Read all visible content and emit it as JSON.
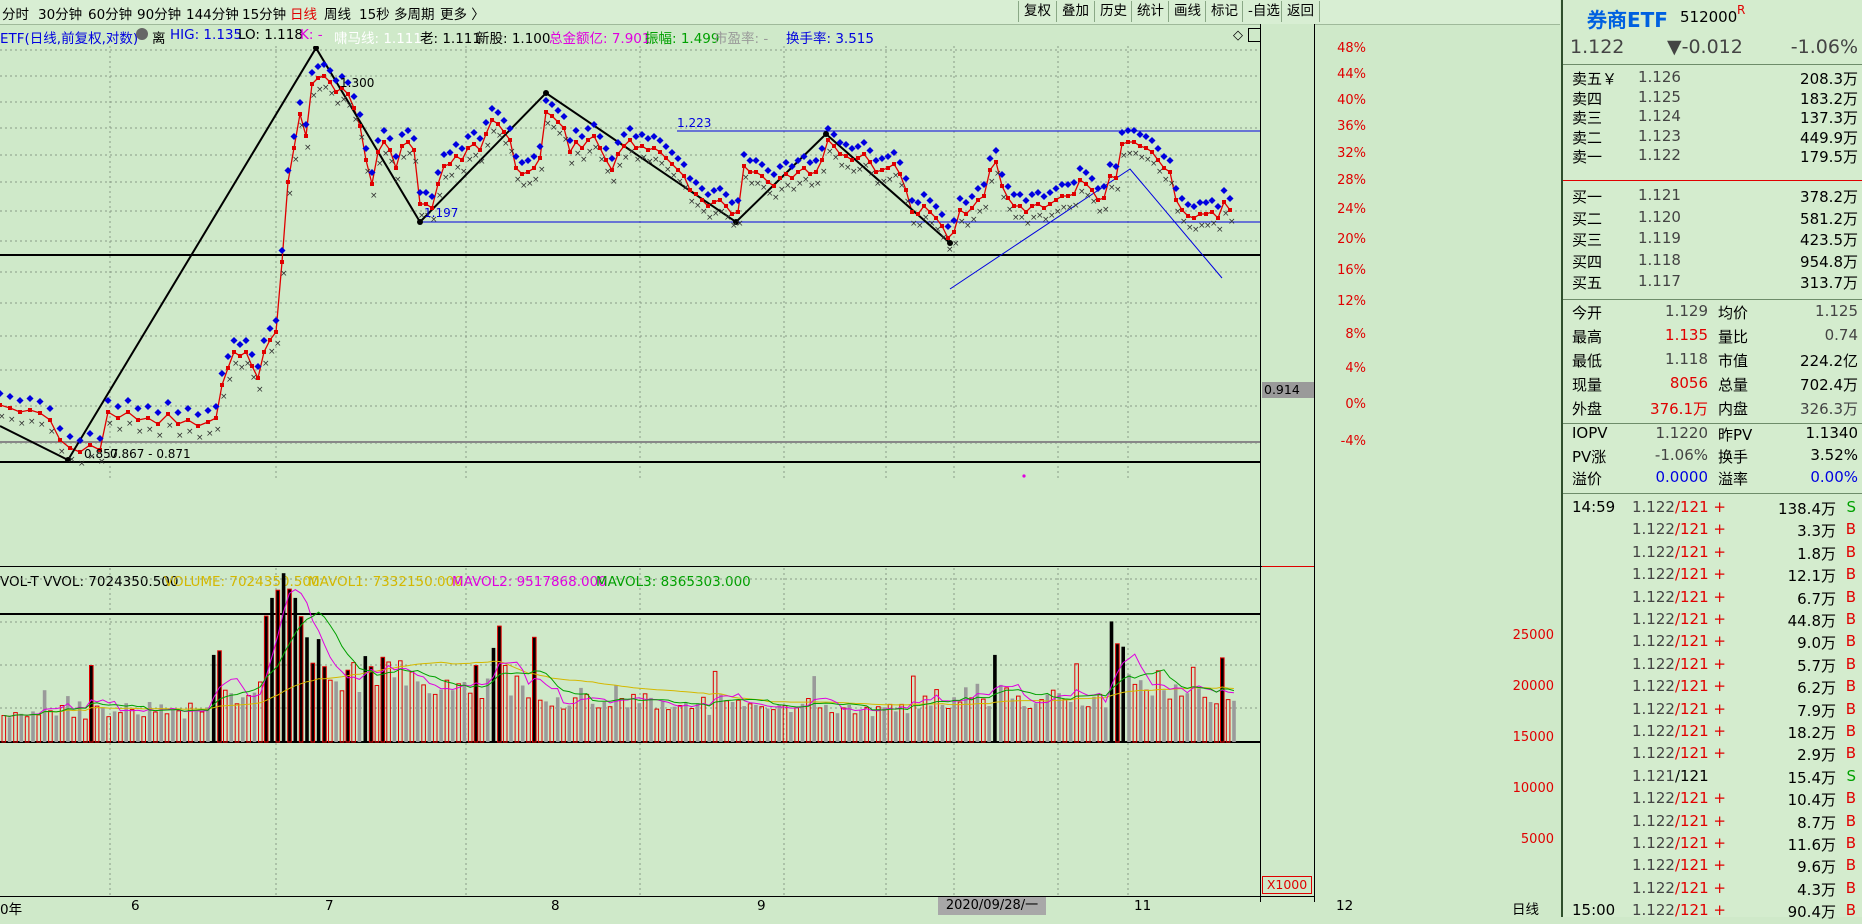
{
  "toolbar": {
    "timeframes": [
      "分时",
      "30分钟",
      "60分钟",
      "90分钟",
      "144分钟",
      "15分钟",
      "日线",
      "周线",
      "15秒",
      "多周期",
      "更多 〉"
    ],
    "active": "日线",
    "buttons": [
      "复权",
      "叠加",
      "历史",
      "统计",
      "画线",
      "标记",
      "-自选",
      "返回"
    ]
  },
  "info_line": {
    "name": "ETF(日线,前复权,对数)",
    "mode": "离",
    "hig": "HIG: 1.135",
    "lo": "LO: 1.118",
    "k": "K: -",
    "jd": "啸马线: 1.111",
    "old": "老: 1.111",
    "new_stock": "新股: 1.100",
    "amount": "总金额亿: 7.901",
    "amplitude": "振幅: 1.499",
    "pe": "市盈率: -",
    "turnover": "换手率: 3.515"
  },
  "price_chart": {
    "pct_labels": [
      "48%",
      "44%",
      "40%",
      "36%",
      "32%",
      "28%",
      "24%",
      "20%",
      "16%",
      "12%",
      "8%",
      "4%",
      "0%",
      "-4%"
    ],
    "annotations": [
      "1.300",
      "1.197",
      "1.223",
      "0.857",
      "0.867 - 0.871"
    ],
    "price_tag": "0.914",
    "series_colors": {
      "k": "#e00000",
      "upper": "#0000e0",
      "lower": "#303030",
      "drawline": "#000000"
    }
  },
  "volume_chart": {
    "legend": {
      "label": "VOL-T VVOL: 7024350.500",
      "volume": "VOLUME: 7024350.500",
      "mavol1": "MAVOL1: 7332150.000",
      "mavol2": "MAVOL2: 9517868.000",
      "mavol3": "MAVOL3: 8365303.000"
    },
    "y_labels": [
      "25000",
      "20000",
      "15000",
      "10000",
      "5000"
    ],
    "unit": "X1000"
  },
  "x_axis": {
    "labels": [
      "0年",
      "6",
      "7",
      "8",
      "9",
      "11",
      "12"
    ],
    "cursor_date": "2020/09/28/一",
    "period": "日线"
  },
  "panel": {
    "title": "券商ETF",
    "code": "512000",
    "flag": "R",
    "price": "1.122",
    "change": "▼-0.012",
    "change_pct": "-1.06%",
    "sells": [
      {
        "label": "卖五￥",
        "price": "1.126",
        "vol": "208.3万"
      },
      {
        "label": "卖四",
        "price": "1.125",
        "vol": "183.2万"
      },
      {
        "label": "卖三",
        "price": "1.124",
        "vol": "137.3万"
      },
      {
        "label": "卖二",
        "price": "1.123",
        "vol": "449.9万"
      },
      {
        "label": "卖一",
        "price": "1.122",
        "vol": "179.5万"
      }
    ],
    "buys": [
      {
        "label": "买一",
        "price": "1.121",
        "vol": "378.2万"
      },
      {
        "label": "买二",
        "price": "1.120",
        "vol": "581.2万"
      },
      {
        "label": "买三",
        "price": "1.119",
        "vol": "423.5万"
      },
      {
        "label": "买四",
        "price": "1.118",
        "vol": "954.8万"
      },
      {
        "label": "买五",
        "price": "1.117",
        "vol": "313.7万"
      }
    ],
    "stats": [
      {
        "l1": "今开",
        "v1": "1.129",
        "l2": "均价",
        "v2": "1.125"
      },
      {
        "l1": "最高",
        "v1": "1.135",
        "l2": "量比",
        "v2": "0.74"
      },
      {
        "l1": "最低",
        "v1": "1.118",
        "l2": "市值",
        "v2": "224.2亿"
      },
      {
        "l1": "现量",
        "v1": "8056",
        "l2": "总量",
        "v2": "702.4万"
      },
      {
        "l1": "外盘",
        "v1": "376.1万",
        "l2": "内盘",
        "v2": "326.3万"
      }
    ],
    "stats_colors": [
      "#444",
      "#e00000",
      "#444",
      "#e00000",
      "#e00000"
    ],
    "stats_colors2": [
      "#444",
      "#444",
      "#000",
      "#000",
      "#444"
    ],
    "iopv": [
      {
        "l1": "IOPV",
        "v1": "1.1220",
        "l2": "昨PV",
        "v2": "1.1340"
      },
      {
        "l1": "PV涨",
        "v1": "-1.06%",
        "l2": "换手",
        "v2": "3.52%"
      },
      {
        "l1": "溢价",
        "v1": "0.0000",
        "l2": "溢率",
        "v2": "0.00%"
      }
    ],
    "ticks": [
      {
        "time": "14:59",
        "price": "1.122",
        "n": "/121",
        "sign": "+",
        "vol": "138.4万",
        "flag": "S"
      },
      {
        "time": "",
        "price": "1.122",
        "n": "/121",
        "sign": "+",
        "vol": "3.3万",
        "flag": "B"
      },
      {
        "time": "",
        "price": "1.122",
        "n": "/121",
        "sign": "+",
        "vol": "1.8万",
        "flag": "B"
      },
      {
        "time": "",
        "price": "1.122",
        "n": "/121",
        "sign": "+",
        "vol": "12.1万",
        "flag": "B"
      },
      {
        "time": "",
        "price": "1.122",
        "n": "/121",
        "sign": "+",
        "vol": "6.7万",
        "flag": "B"
      },
      {
        "time": "",
        "price": "1.122",
        "n": "/121",
        "sign": "+",
        "vol": "44.8万",
        "flag": "B"
      },
      {
        "time": "",
        "price": "1.122",
        "n": "/121",
        "sign": "+",
        "vol": "9.0万",
        "flag": "B"
      },
      {
        "time": "",
        "price": "1.122",
        "n": "/121",
        "sign": "+",
        "vol": "5.7万",
        "flag": "B"
      },
      {
        "time": "",
        "price": "1.122",
        "n": "/121",
        "sign": "+",
        "vol": "6.2万",
        "flag": "B"
      },
      {
        "time": "",
        "price": "1.122",
        "n": "/121",
        "sign": "+",
        "vol": "7.9万",
        "flag": "B"
      },
      {
        "time": "",
        "price": "1.122",
        "n": "/121",
        "sign": "+",
        "vol": "18.2万",
        "flag": "B"
      },
      {
        "time": "",
        "price": "1.122",
        "n": "/121",
        "sign": "+",
        "vol": "2.9万",
        "flag": "B"
      },
      {
        "time": "",
        "price": "1.121",
        "n": "/121",
        "sign": "",
        "vol": "15.4万",
        "flag": "S"
      },
      {
        "time": "",
        "price": "1.122",
        "n": "/121",
        "sign": "+",
        "vol": "10.4万",
        "flag": "B"
      },
      {
        "time": "",
        "price": "1.122",
        "n": "/121",
        "sign": "+",
        "vol": "8.7万",
        "flag": "B"
      },
      {
        "time": "",
        "price": "1.122",
        "n": "/121",
        "sign": "+",
        "vol": "11.6万",
        "flag": "B"
      },
      {
        "time": "",
        "price": "1.122",
        "n": "/121",
        "sign": "+",
        "vol": "9.6万",
        "flag": "B"
      },
      {
        "time": "",
        "price": "1.122",
        "n": "/121",
        "sign": "+",
        "vol": "4.3万",
        "flag": "B"
      },
      {
        "time": "15:00",
        "price": "1.122",
        "n": "/121",
        "sign": "+",
        "vol": "90.4万",
        "flag": "B"
      }
    ]
  },
  "colors": {
    "bg": "#cfe9c9",
    "up": "#e00000",
    "down": "#000000",
    "accent": "#0000e0",
    "green": "#00a000",
    "grid": "#8a9a87"
  }
}
